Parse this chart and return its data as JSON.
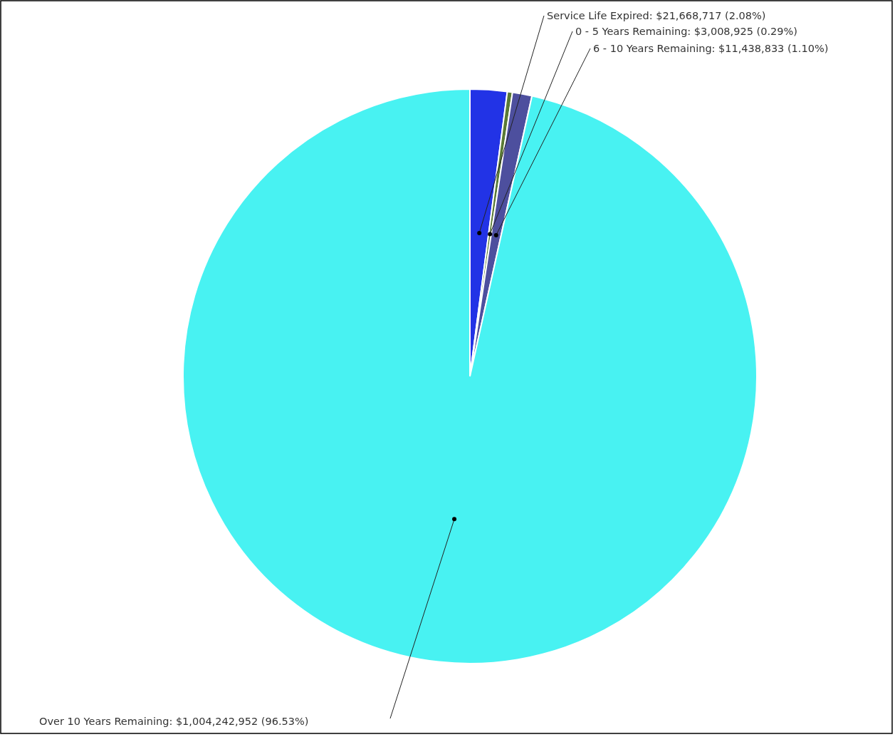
{
  "chart_data": {
    "type": "pie",
    "categories": [
      "Service Life Expired",
      "0 - 5 Years Remaining",
      "6 - 10 Years Remaining",
      "Over 10 Years Remaining"
    ],
    "values": [
      21668717,
      3008925,
      11438833,
      1004242952
    ],
    "value_labels": [
      "$21,668,717 (2.08%)",
      "$3,008,925 (0.29%)",
      "$11,438,833 (1.10%)",
      "$1,004,242,952 (96.53%)"
    ],
    "colors": [
      "#2233e6",
      "#5a7a35",
      "#4d4f9e",
      "#48f2f2"
    ]
  }
}
